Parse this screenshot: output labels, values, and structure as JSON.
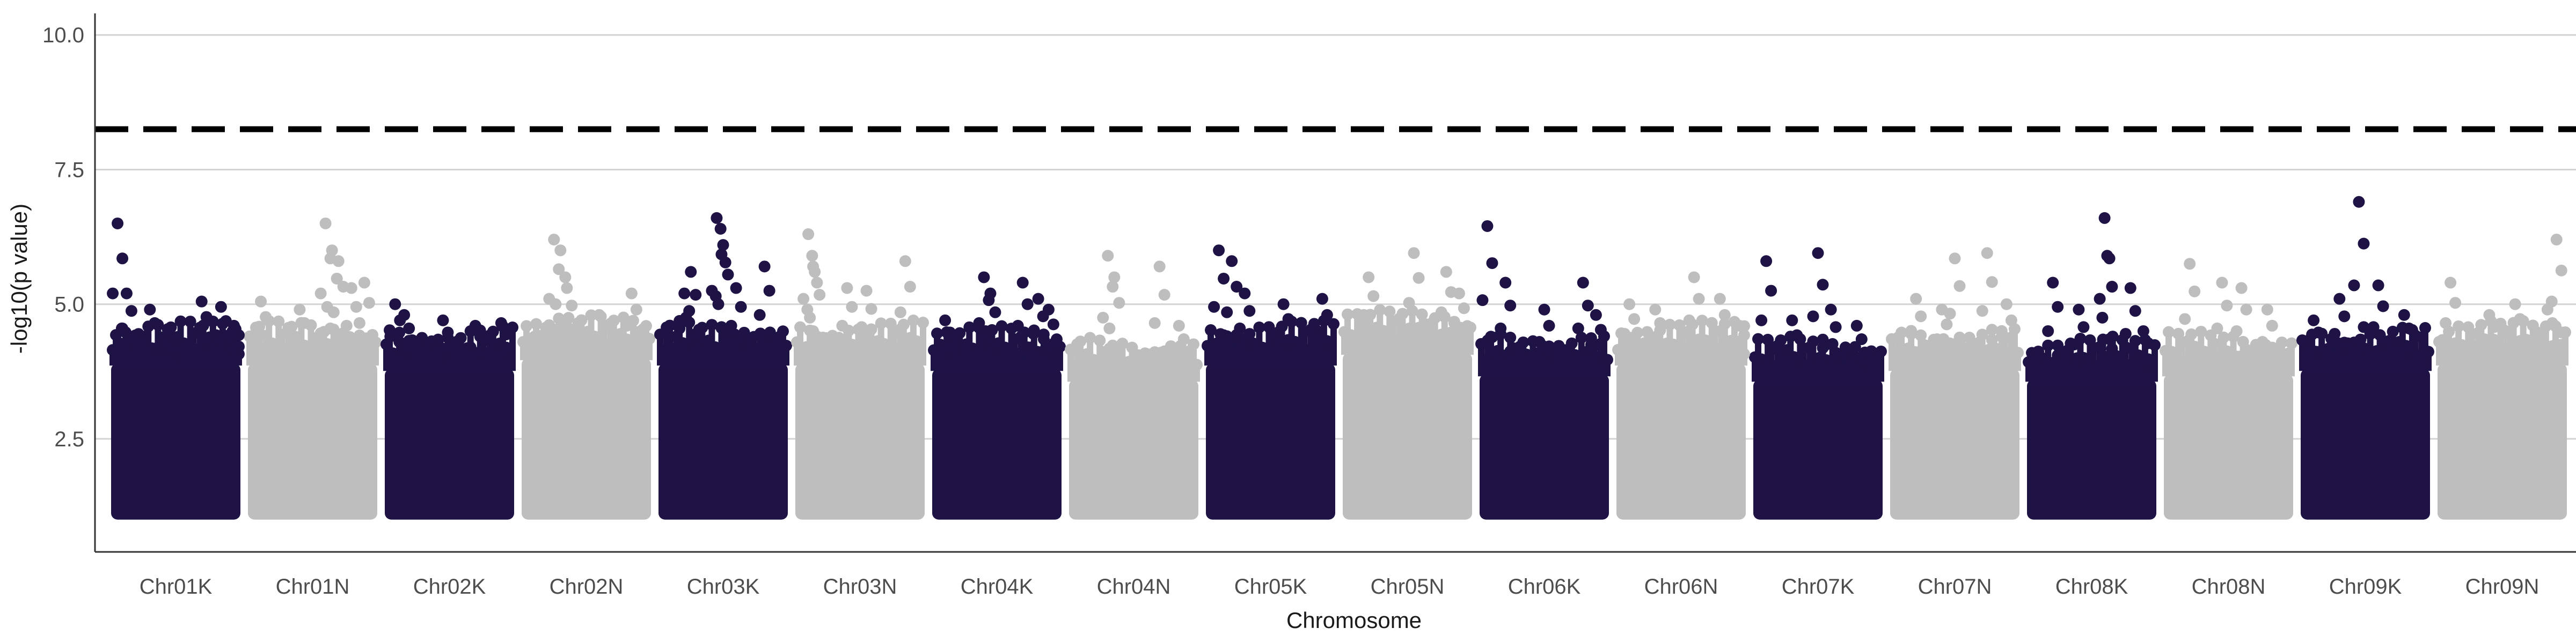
{
  "chart_data": {
    "type": "scatter",
    "title": "",
    "xlabel": "Chromosome",
    "ylabel": "-log10(p value)",
    "ylim": [
      0.4,
      10.4
    ],
    "yticks": [
      "2.5",
      "5.0",
      "7.5",
      "10.0"
    ],
    "grid": "horizontal",
    "legend": "none",
    "threshold": {
      "value": 8.25,
      "style": "dashed",
      "color": "#000000"
    },
    "colors": {
      "odd": "#1f1346",
      "even": "#bebebe"
    },
    "categories": [
      "Chr01K",
      "Chr01N",
      "Chr02K",
      "Chr02N",
      "Chr03K",
      "Chr03N",
      "Chr04K",
      "Chr04N",
      "Chr05K",
      "Chr05N",
      "Chr06K",
      "Chr06N",
      "Chr07K",
      "Chr07N",
      "Chr08K",
      "Chr08N",
      "Chr09K",
      "Chr09N"
    ],
    "series": [
      {
        "chromosome": "Chr01K",
        "dense_top": 3.9,
        "peaks": [
          [
            0.05,
            6.5
          ],
          [
            0.12,
            5.2
          ],
          [
            0.3,
            4.9
          ],
          [
            0.45,
            4.4
          ],
          [
            0.7,
            5.05
          ],
          [
            0.85,
            4.95
          ],
          [
            0.95,
            4.6
          ]
        ]
      },
      {
        "chromosome": "Chr01N",
        "dense_top": 3.9,
        "peaks": [
          [
            0.1,
            5.05
          ],
          [
            0.4,
            4.9
          ],
          [
            0.6,
            6.5
          ],
          [
            0.65,
            6.0
          ],
          [
            0.7,
            5.8
          ],
          [
            0.8,
            5.3
          ],
          [
            0.9,
            5.4
          ]
        ]
      },
      {
        "chromosome": "Chr02K",
        "dense_top": 3.8,
        "peaks": [
          [
            0.08,
            5.0
          ],
          [
            0.15,
            4.8
          ],
          [
            0.45,
            4.7
          ],
          [
            0.7,
            4.6
          ],
          [
            0.9,
            4.65
          ]
        ]
      },
      {
        "chromosome": "Chr02N",
        "dense_top": 4.0,
        "peaks": [
          [
            0.1,
            4.4
          ],
          [
            0.25,
            6.2
          ],
          [
            0.3,
            6.0
          ],
          [
            0.35,
            5.3
          ],
          [
            0.6,
            4.8
          ],
          [
            0.85,
            5.2
          ]
        ]
      },
      {
        "chromosome": "Chr03K",
        "dense_top": 3.9,
        "peaks": [
          [
            0.2,
            5.2
          ],
          [
            0.25,
            5.6
          ],
          [
            0.45,
            6.6
          ],
          [
            0.48,
            6.4
          ],
          [
            0.5,
            6.1
          ],
          [
            0.6,
            5.3
          ],
          [
            0.82,
            5.7
          ]
        ]
      },
      {
        "chromosome": "Chr03N",
        "dense_top": 3.9,
        "peaks": [
          [
            0.1,
            6.3
          ],
          [
            0.13,
            5.9
          ],
          [
            0.15,
            5.6
          ],
          [
            0.4,
            5.3
          ],
          [
            0.55,
            5.25
          ],
          [
            0.85,
            5.8
          ]
        ]
      },
      {
        "chromosome": "Chr04K",
        "dense_top": 3.8,
        "peaks": [
          [
            0.1,
            4.7
          ],
          [
            0.4,
            5.5
          ],
          [
            0.45,
            5.2
          ],
          [
            0.7,
            5.4
          ],
          [
            0.82,
            5.1
          ],
          [
            0.9,
            4.9
          ]
        ]
      },
      {
        "chromosome": "Chr04N",
        "dense_top": 3.6,
        "peaks": [
          [
            0.3,
            5.9
          ],
          [
            0.35,
            5.5
          ],
          [
            0.7,
            5.7
          ],
          [
            0.85,
            4.6
          ]
        ]
      },
      {
        "chromosome": "Chr05K",
        "dense_top": 3.9,
        "peaks": [
          [
            0.1,
            6.0
          ],
          [
            0.2,
            5.8
          ],
          [
            0.3,
            5.2
          ],
          [
            0.6,
            5.0
          ],
          [
            0.9,
            5.1
          ]
        ]
      },
      {
        "chromosome": "Chr05N",
        "dense_top": 4.1,
        "peaks": [
          [
            0.2,
            5.5
          ],
          [
            0.55,
            5.95
          ],
          [
            0.8,
            5.6
          ],
          [
            0.9,
            5.2
          ]
        ]
      },
      {
        "chromosome": "Chr06K",
        "dense_top": 3.7,
        "peaks": [
          [
            0.06,
            6.45
          ],
          [
            0.2,
            5.4
          ],
          [
            0.5,
            4.9
          ],
          [
            0.8,
            5.4
          ],
          [
            0.9,
            4.8
          ]
        ]
      },
      {
        "chromosome": "Chr06N",
        "dense_top": 3.9,
        "peaks": [
          [
            0.1,
            5.0
          ],
          [
            0.3,
            4.9
          ],
          [
            0.6,
            5.5
          ],
          [
            0.8,
            5.1
          ],
          [
            0.95,
            4.6
          ]
        ]
      },
      {
        "chromosome": "Chr07K",
        "dense_top": 3.6,
        "peaks": [
          [
            0.1,
            5.8
          ],
          [
            0.3,
            4.7
          ],
          [
            0.5,
            5.95
          ],
          [
            0.6,
            4.9
          ],
          [
            0.8,
            4.6
          ]
        ]
      },
      {
        "chromosome": "Chr07N",
        "dense_top": 3.8,
        "peaks": [
          [
            0.2,
            5.1
          ],
          [
            0.4,
            4.9
          ],
          [
            0.5,
            5.85
          ],
          [
            0.75,
            5.95
          ],
          [
            0.9,
            5.0
          ]
        ]
      },
      {
        "chromosome": "Chr08K",
        "dense_top": 3.6,
        "peaks": [
          [
            0.2,
            5.4
          ],
          [
            0.4,
            4.9
          ],
          [
            0.6,
            6.6
          ],
          [
            0.62,
            5.9
          ],
          [
            0.8,
            5.3
          ],
          [
            0.9,
            4.5
          ]
        ]
      },
      {
        "chromosome": "Chr08N",
        "dense_top": 3.7,
        "peaks": [
          [
            0.2,
            5.75
          ],
          [
            0.45,
            5.4
          ],
          [
            0.6,
            5.3
          ],
          [
            0.8,
            4.9
          ]
        ]
      },
      {
        "chromosome": "Chr09K",
        "dense_top": 3.8,
        "peaks": [
          [
            0.1,
            4.7
          ],
          [
            0.3,
            5.1
          ],
          [
            0.45,
            6.9
          ],
          [
            0.6,
            5.35
          ],
          [
            0.8,
            4.8
          ]
        ]
      },
      {
        "chromosome": "Chr09N",
        "dense_top": 3.9,
        "peaks": [
          [
            0.1,
            5.4
          ],
          [
            0.4,
            4.8
          ],
          [
            0.6,
            5.0
          ],
          [
            0.85,
            4.9
          ],
          [
            0.92,
            6.2
          ]
        ]
      }
    ]
  }
}
